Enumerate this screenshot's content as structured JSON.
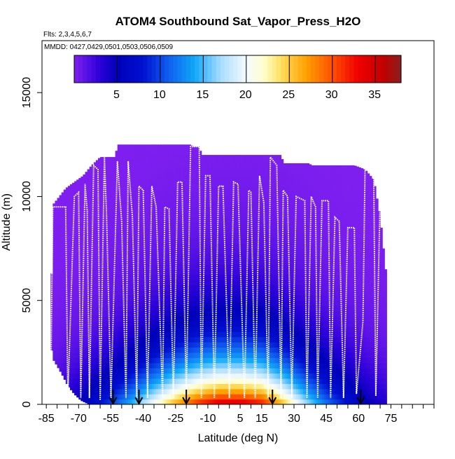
{
  "chart_data": {
    "type": "heatmap",
    "title": "ATOM4 Southbound Sat_Vapor_Press_H2O",
    "subtitle_flights": "Flts: 2,3,4,5,6,7",
    "subtitle_dates": "MMDD: 0427,0429,0501,0503,0506,0509",
    "xlabel": "Latitude (deg N)",
    "ylabel": "Altitude (m)",
    "xlim": [
      -87,
      95
    ],
    "ylim": [
      0,
      17500
    ],
    "x_ticks": [
      -85,
      -70,
      -55,
      -40,
      -25,
      -10,
      5,
      15,
      30,
      45,
      60,
      75
    ],
    "x_tick_labels": [
      "-85",
      "-70",
      "-55",
      "-40",
      "-25",
      "-10",
      "5",
      "15",
      "30",
      "45",
      "60",
      "75"
    ],
    "x_minor_tick_step": 5,
    "y_ticks": [
      0,
      5000,
      10000,
      15000
    ],
    "y_tick_labels": [
      "0",
      "5000",
      "10000",
      "15000"
    ],
    "colorbar": {
      "range": [
        0,
        38
      ],
      "ticks": [
        5,
        10,
        15,
        20,
        25,
        30,
        35
      ],
      "tick_labels": [
        "5",
        "10",
        "15",
        "20",
        "25",
        "30",
        "35"
      ],
      "color_stops": [
        [
          0,
          "#8020f0"
        ],
        [
          3,
          "#2a00d8"
        ],
        [
          5,
          "#0000b8"
        ],
        [
          8,
          "#0010d0"
        ],
        [
          11,
          "#1060f0"
        ],
        [
          14,
          "#10a8f8"
        ],
        [
          17,
          "#a8dcff"
        ],
        [
          20,
          "#f4faff"
        ],
        [
          22,
          "#ffffd0"
        ],
        [
          24,
          "#ffe060"
        ],
        [
          27,
          "#ffa000"
        ],
        [
          30,
          "#ff5000"
        ],
        [
          33,
          "#f00000"
        ],
        [
          36,
          "#c00000"
        ],
        [
          38,
          "#882020"
        ]
      ]
    },
    "ceiling_profile": [
      {
        "lat": -83,
        "alt": 3000
      },
      {
        "lat": -82,
        "alt": 9600
      },
      {
        "lat": -76,
        "alt": 10400
      },
      {
        "lat": -72,
        "alt": 10700
      },
      {
        "lat": -68,
        "alt": 11000
      },
      {
        "lat": -64,
        "alt": 11500
      },
      {
        "lat": -60,
        "alt": 11900
      },
      {
        "lat": -53,
        "alt": 11900
      },
      {
        "lat": -52,
        "alt": 12500
      },
      {
        "lat": -18,
        "alt": 12500
      },
      {
        "lat": -17,
        "alt": 12400
      },
      {
        "lat": -14,
        "alt": 12400
      },
      {
        "lat": -13,
        "alt": 12000
      },
      {
        "lat": 24,
        "alt": 12000
      },
      {
        "lat": 25,
        "alt": 11600
      },
      {
        "lat": 37,
        "alt": 11600
      },
      {
        "lat": 38,
        "alt": 11500
      },
      {
        "lat": 58,
        "alt": 11500
      },
      {
        "lat": 63,
        "alt": 11300
      },
      {
        "lat": 67,
        "alt": 10800
      },
      {
        "lat": 70,
        "alt": 9000
      },
      {
        "lat": 73,
        "alt": 6000
      },
      {
        "lat": 73,
        "alt": 0
      }
    ],
    "floor_profile": [
      {
        "lat": -83,
        "alt": 3000
      },
      {
        "lat": -82,
        "alt": 2200
      },
      {
        "lat": -78,
        "alt": 1500
      },
      {
        "lat": -75,
        "alt": 900
      },
      {
        "lat": -72,
        "alt": 500
      },
      {
        "lat": -69,
        "alt": 200
      },
      {
        "lat": -65,
        "alt": 0
      },
      {
        "lat": 73,
        "alt": 0
      }
    ],
    "surface_profile": [
      {
        "lat": -85,
        "sat_vp": 2
      },
      {
        "lat": -70,
        "sat_vp": 5
      },
      {
        "lat": -55,
        "sat_vp": 10
      },
      {
        "lat": -45,
        "sat_vp": 15
      },
      {
        "lat": -35,
        "sat_vp": 21
      },
      {
        "lat": -25,
        "sat_vp": 27
      },
      {
        "lat": -15,
        "sat_vp": 32
      },
      {
        "lat": -5,
        "sat_vp": 35
      },
      {
        "lat": 5,
        "sat_vp": 35
      },
      {
        "lat": 15,
        "sat_vp": 33
      },
      {
        "lat": 25,
        "sat_vp": 26
      },
      {
        "lat": 35,
        "sat_vp": 18
      },
      {
        "lat": 45,
        "sat_vp": 12
      },
      {
        "lat": 55,
        "sat_vp": 8
      },
      {
        "lat": 65,
        "sat_vp": 5
      },
      {
        "lat": 75,
        "sat_vp": 3
      }
    ],
    "flight_profile_description_free": true,
    "flight_track": [
      {
        "lat": -83,
        "alt": 200
      },
      {
        "lat": -82,
        "alt": 9500
      },
      {
        "lat": -76,
        "alt": 9500
      },
      {
        "lat": -75,
        "alt": 300
      },
      {
        "lat": -72,
        "alt": 10000
      },
      {
        "lat": -70,
        "alt": 10200
      },
      {
        "lat": -69,
        "alt": 300
      },
      {
        "lat": -67,
        "alt": 10600
      },
      {
        "lat": -66,
        "alt": 9300
      },
      {
        "lat": -65,
        "alt": 300
      },
      {
        "lat": -63,
        "alt": 11500
      },
      {
        "lat": -61,
        "alt": 11300
      },
      {
        "lat": -60,
        "alt": 200
      },
      {
        "lat": -58,
        "alt": 11900
      },
      {
        "lat": -57,
        "alt": 9000
      },
      {
        "lat": -55,
        "alt": 300
      },
      {
        "lat": -52,
        "alt": 11700
      },
      {
        "lat": -50,
        "alt": 8800
      },
      {
        "lat": -48,
        "alt": 300
      },
      {
        "lat": -47,
        "alt": 11700
      },
      {
        "lat": -45,
        "alt": 9000
      },
      {
        "lat": -43,
        "alt": 300
      },
      {
        "lat": -42,
        "alt": 10500
      },
      {
        "lat": -40,
        "alt": 10300
      },
      {
        "lat": -38,
        "alt": 300
      },
      {
        "lat": -36,
        "alt": 10500
      },
      {
        "lat": -34,
        "alt": 9500
      },
      {
        "lat": -31,
        "alt": 300
      },
      {
        "lat": -30,
        "alt": 9500
      },
      {
        "lat": -28,
        "alt": 9400
      },
      {
        "lat": -26,
        "alt": 300
      },
      {
        "lat": -24,
        "alt": 10700
      },
      {
        "lat": -22,
        "alt": 10700
      },
      {
        "lat": -20,
        "alt": 300
      },
      {
        "lat": -18,
        "alt": 12400
      },
      {
        "lat": -14,
        "alt": 12400
      },
      {
        "lat": -13,
        "alt": 300
      },
      {
        "lat": -11,
        "alt": 11000
      },
      {
        "lat": -9,
        "alt": 11000
      },
      {
        "lat": -7,
        "alt": 300
      },
      {
        "lat": -5,
        "alt": 10500
      },
      {
        "lat": -3,
        "alt": 10500
      },
      {
        "lat": 0,
        "alt": 300
      },
      {
        "lat": 2,
        "alt": 10700
      },
      {
        "lat": 4,
        "alt": 10600
      },
      {
        "lat": 7,
        "alt": 300
      },
      {
        "lat": 9,
        "alt": 10300
      },
      {
        "lat": 10,
        "alt": 10200
      },
      {
        "lat": 12,
        "alt": 300
      },
      {
        "lat": 14,
        "alt": 11000
      },
      {
        "lat": 16,
        "alt": 9700
      },
      {
        "lat": 18,
        "alt": 300
      },
      {
        "lat": 19,
        "alt": 11900
      },
      {
        "lat": 22,
        "alt": 11500
      },
      {
        "lat": 24,
        "alt": 300
      },
      {
        "lat": 25,
        "alt": 10300
      },
      {
        "lat": 27,
        "alt": 10000
      },
      {
        "lat": 29,
        "alt": 300
      },
      {
        "lat": 31,
        "alt": 10000
      },
      {
        "lat": 35,
        "alt": 9800
      },
      {
        "lat": 36,
        "alt": 300
      },
      {
        "lat": 38,
        "alt": 10000
      },
      {
        "lat": 40,
        "alt": 9500
      },
      {
        "lat": 41,
        "alt": 300
      },
      {
        "lat": 43,
        "alt": 9800
      },
      {
        "lat": 46,
        "alt": 9800
      },
      {
        "lat": 47,
        "alt": 300
      },
      {
        "lat": 49,
        "alt": 9000
      },
      {
        "lat": 51,
        "alt": 8800
      },
      {
        "lat": 53,
        "alt": 300
      },
      {
        "lat": 55,
        "alt": 8500
      },
      {
        "lat": 58,
        "alt": 8500
      },
      {
        "lat": 59,
        "alt": 500
      },
      {
        "lat": 61,
        "alt": 2800
      },
      {
        "lat": 62,
        "alt": 4000
      },
      {
        "lat": 63,
        "alt": 11300
      },
      {
        "lat": 67,
        "alt": 11300
      },
      {
        "lat": 68,
        "alt": 400
      },
      {
        "lat": 70,
        "alt": 10000
      },
      {
        "lat": 71,
        "alt": 9000
      }
    ],
    "airport_markers_lat": [
      -54,
      -42,
      -20,
      20,
      61
    ]
  }
}
